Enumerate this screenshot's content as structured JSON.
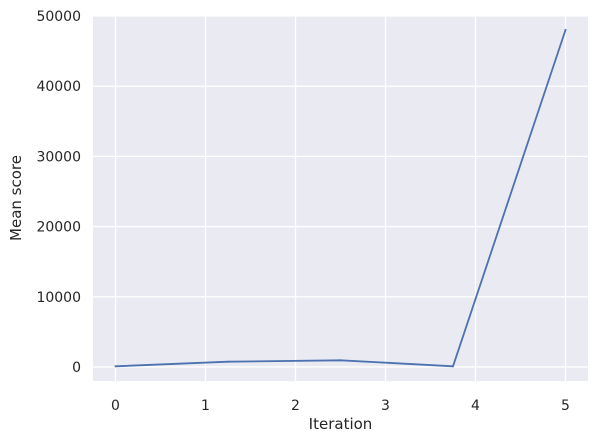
{
  "chart_data": {
    "type": "line",
    "title": "",
    "xlabel": "Iteration",
    "ylabel": "Mean score",
    "xlim": [
      -0.25,
      5.25
    ],
    "ylim": [
      -2000,
      50000
    ],
    "x_ticks": [
      0,
      1,
      2,
      3,
      4,
      5
    ],
    "y_ticks": [
      0,
      10000,
      20000,
      30000,
      40000,
      50000
    ],
    "x_tick_labels": [
      "0",
      "1",
      "2",
      "3",
      "4",
      "5"
    ],
    "y_tick_labels": [
      "0",
      "10000",
      "20000",
      "30000",
      "40000",
      "50000"
    ],
    "grid": true,
    "background": "#eaeaf2",
    "grid_color": "#ffffff",
    "series": [
      {
        "color": "#4c72b0",
        "x": [
          0,
          1.25,
          2.5,
          3.75,
          5
        ],
        "y": [
          100,
          750,
          950,
          100,
          48000
        ]
      }
    ]
  }
}
